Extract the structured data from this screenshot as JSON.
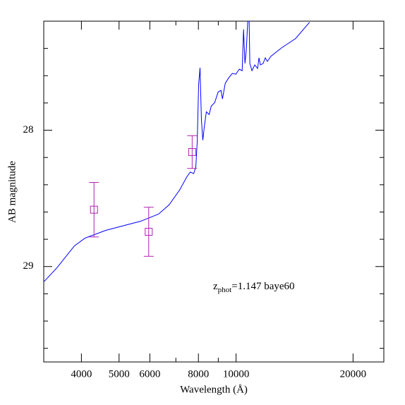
{
  "chart_data": {
    "type": "sed",
    "x_label": "Wavelength (Å)",
    "y_label": "AB magnitude",
    "annotation": {
      "main": "z",
      "sub": "phot",
      "rest": "=1.147 baye60",
      "color": "#0000ff"
    },
    "x_log": true,
    "xlim": [
      3200,
      24000
    ],
    "xticks": [
      4000,
      5000,
      6000,
      8000,
      10000,
      20000
    ],
    "xminorticks": [
      7000,
      9000
    ],
    "ylim": [
      29.7,
      27.2
    ],
    "yticks": [
      28,
      29
    ],
    "yminorticks": [
      27.4,
      27.6,
      27.8,
      28.2,
      28.4,
      28.6,
      28.8,
      29.2,
      29.4,
      29.6
    ],
    "series": [
      {
        "kind": "line",
        "color": "#0000ff",
        "x": [
          3209,
          3458,
          3836,
          4083,
          4627,
          5694,
          6319,
          6726,
          7159,
          7464,
          7621,
          7780,
          7877,
          7945,
          8011,
          8078,
          8145,
          8213,
          8281,
          8385,
          8527,
          8633,
          8811,
          8995,
          9148,
          9225,
          9379,
          9576,
          9779,
          9986,
          10195,
          10368,
          10454,
          10541,
          10628,
          10717,
          10806,
          10851,
          10987,
          11173,
          11360,
          11455,
          11550,
          11740,
          11890,
          12039,
          12291,
          13089,
          14220,
          15456
        ],
        "values": [
          29.109,
          29.01,
          28.849,
          28.792,
          28.734,
          28.667,
          28.615,
          28.547,
          28.438,
          28.344,
          28.307,
          28.318,
          28.271,
          28.083,
          27.667,
          27.542,
          27.927,
          28.073,
          27.979,
          27.865,
          27.885,
          27.823,
          27.797,
          27.719,
          27.708,
          27.771,
          27.656,
          27.615,
          27.583,
          27.589,
          27.552,
          27.563,
          27.26,
          27.51,
          27.406,
          27.2,
          27.2,
          27.51,
          27.563,
          27.521,
          27.547,
          27.469,
          27.521,
          27.51,
          27.469,
          27.495,
          27.458,
          27.396,
          27.328,
          27.208
        ]
      },
      {
        "kind": "points",
        "color": "#b020b0",
        "x": [
          4310,
          5960,
          7710
        ],
        "values": [
          28.583,
          28.745,
          28.16
        ],
        "errors": [
          0.2,
          0.18,
          0.12
        ]
      }
    ]
  }
}
